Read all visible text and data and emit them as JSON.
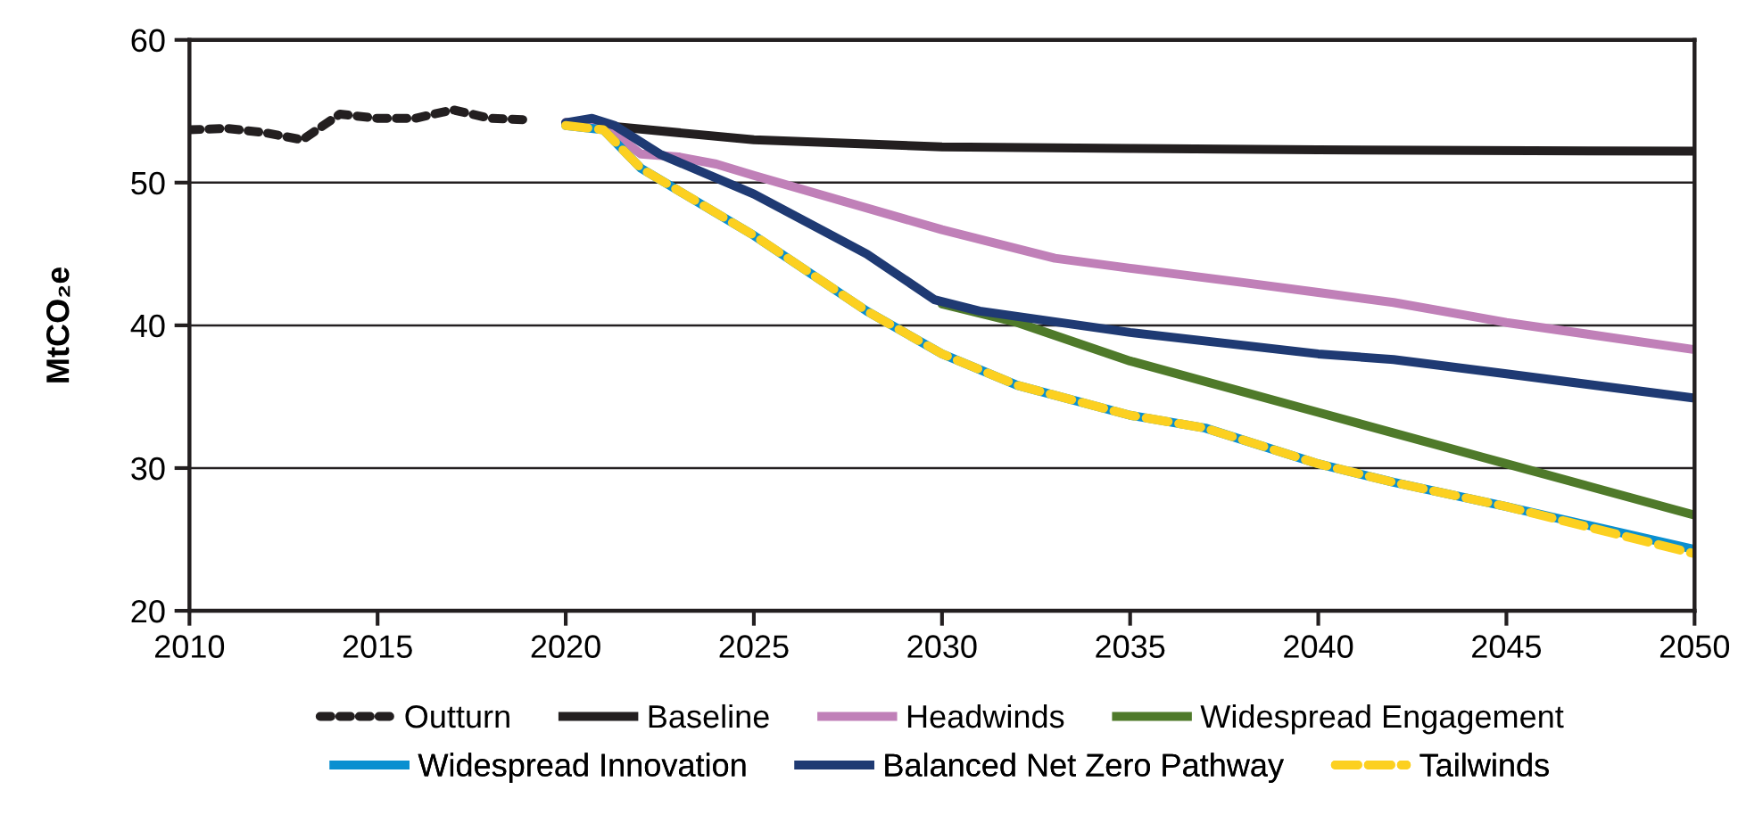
{
  "chart_data": {
    "type": "line",
    "ylabel": "MtCO₂e",
    "xlim": [
      2010,
      2050
    ],
    "xticks": [
      2010,
      2015,
      2020,
      2025,
      2030,
      2035,
      2040,
      2045,
      2050
    ],
    "ylim": [
      20,
      60
    ],
    "yticks": [
      20,
      30,
      40,
      50,
      60
    ],
    "grid": "y",
    "legend": "bottom",
    "marker": "none",
    "series": [
      {
        "name": "Outturn",
        "color": "#231f20",
        "line_style": "dotted",
        "x": [
          2010,
          2011,
          2012,
          2013,
          2014,
          2015,
          2016,
          2017,
          2018,
          2019
        ],
        "values": [
          53.7,
          53.8,
          53.5,
          53.0,
          54.8,
          54.5,
          54.5,
          55.1,
          54.5,
          54.4
        ]
      },
      {
        "name": "Baseline",
        "color": "#231f20",
        "line_style": "solid",
        "x": [
          2020,
          2021,
          2025,
          2030,
          2035,
          2040,
          2050
        ],
        "values": [
          54.2,
          54.0,
          53.0,
          52.5,
          52.4,
          52.3,
          52.2
        ]
      },
      {
        "name": "Headwinds",
        "color": "#c080b8",
        "line_style": "solid",
        "x": [
          2020,
          2021,
          2022,
          2023,
          2024,
          2025,
          2030,
          2033,
          2035,
          2038,
          2040,
          2042,
          2045,
          2050
        ],
        "values": [
          54.2,
          54.0,
          52.0,
          51.8,
          51.3,
          50.5,
          46.7,
          44.7,
          44.0,
          43.0,
          42.3,
          41.6,
          40.2,
          38.3
        ]
      },
      {
        "name": "Widespread Engagement",
        "color": "#4f7a2a",
        "line_style": "solid",
        "x": [
          2030,
          2032,
          2035,
          2040,
          2045,
          2050
        ],
        "values": [
          41.5,
          40.2,
          37.5,
          33.9,
          30.3,
          26.7
        ]
      },
      {
        "name": "Widespread Innovation",
        "color": "#0a8fd0",
        "line_style": "solid",
        "x": [
          2020,
          2021,
          2022,
          2025,
          2028,
          2030,
          2032,
          2035,
          2037,
          2040,
          2042,
          2045,
          2050
        ],
        "values": [
          54.0,
          53.7,
          51.0,
          46.3,
          41.0,
          38.0,
          35.8,
          33.7,
          32.8,
          30.3,
          29.0,
          27.3,
          24.3
        ]
      },
      {
        "name": "Balanced Net Zero Pathway",
        "color": "#1f3a73",
        "line_style": "solid",
        "x": [
          2020,
          2020.7,
          2021.3,
          2022.5,
          2025,
          2028,
          2029.8,
          2031,
          2035,
          2040,
          2042,
          2045,
          2050
        ],
        "values": [
          54.2,
          54.5,
          54.0,
          52.0,
          49.2,
          45.0,
          41.8,
          41.0,
          39.5,
          38.0,
          37.6,
          36.6,
          34.9
        ]
      },
      {
        "name": "Tailwinds",
        "color": "#fcd020",
        "line_style": "dashed",
        "x": [
          2020,
          2021,
          2022,
          2025,
          2028,
          2030,
          2032,
          2035,
          2037,
          2040,
          2042,
          2045,
          2050
        ],
        "values": [
          54.0,
          53.7,
          51.0,
          46.3,
          41.0,
          38.0,
          35.8,
          33.7,
          32.8,
          30.3,
          29.0,
          27.3,
          24.0
        ]
      }
    ]
  }
}
